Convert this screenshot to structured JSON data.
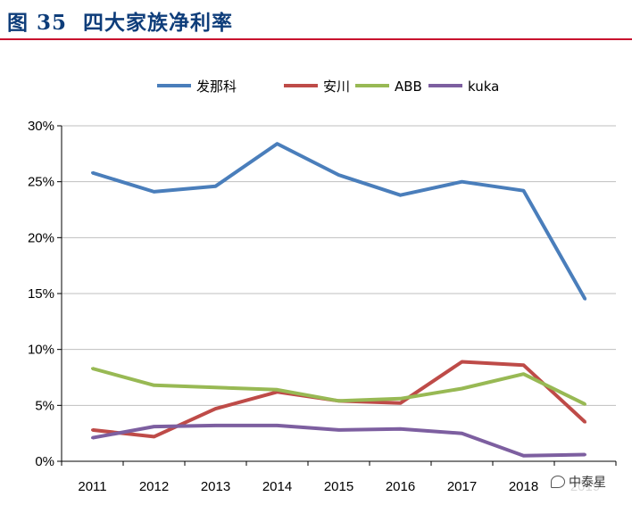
{
  "figure": {
    "label": "图 35",
    "title": "四大家族净利率"
  },
  "watermark": {
    "text": "中泰星"
  },
  "colors": {
    "title": "#0e3d7a",
    "rule": "#c8102e",
    "grid": "#bfbfbf"
  },
  "chart_data": {
    "type": "line",
    "title": "",
    "xlabel": "",
    "ylabel": "",
    "categories": [
      "2011",
      "2012",
      "2013",
      "2014",
      "2015",
      "2016",
      "2017",
      "2018",
      "2019"
    ],
    "ylim": [
      0,
      30
    ],
    "yticks": [
      0,
      5,
      10,
      15,
      20,
      25,
      30
    ],
    "ytick_labels": [
      "0%",
      "5%",
      "10%",
      "15%",
      "20%",
      "25%",
      "30%"
    ],
    "grid": true,
    "legend_position": "top",
    "series": [
      {
        "name": "发那科",
        "color": "#4a7ebb",
        "values": [
          25.8,
          24.1,
          24.6,
          28.4,
          25.6,
          23.8,
          25.0,
          24.2,
          14.5
        ]
      },
      {
        "name": "安川",
        "color": "#be4b48",
        "values": [
          2.8,
          2.2,
          4.7,
          6.2,
          5.4,
          5.2,
          8.9,
          8.6,
          3.5
        ]
      },
      {
        "name": "ABB",
        "color": "#98b954",
        "values": [
          8.3,
          6.8,
          6.6,
          6.4,
          5.4,
          5.6,
          6.5,
          7.8,
          5.1
        ]
      },
      {
        "name": "kuka",
        "color": "#7d5fa0",
        "values": [
          2.1,
          3.1,
          3.2,
          3.2,
          2.8,
          2.9,
          2.5,
          0.5,
          0.6
        ]
      }
    ]
  }
}
